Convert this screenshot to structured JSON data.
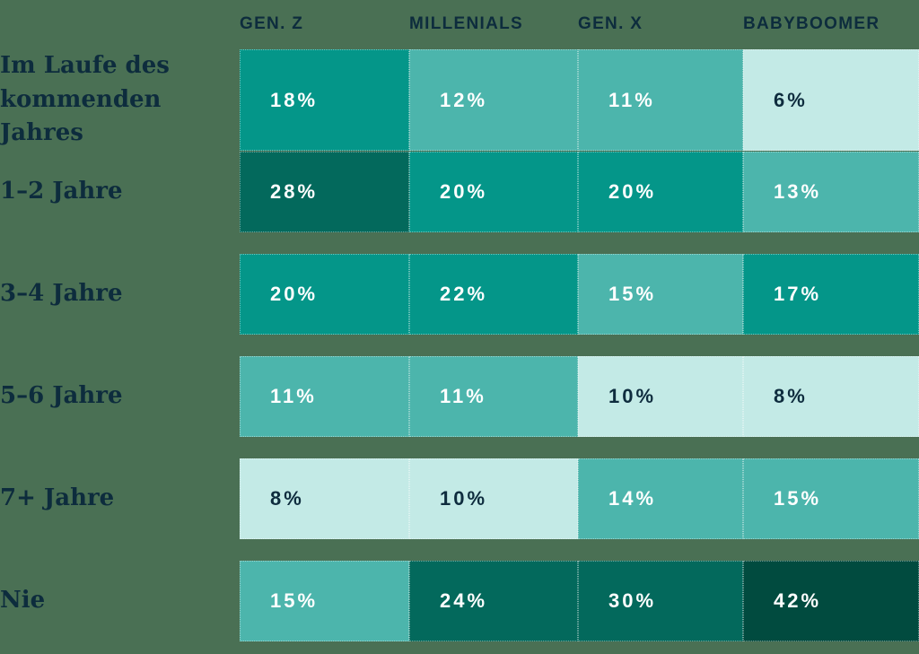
{
  "palette": {
    "background": "#4A7054",
    "darkest": "#014B3F",
    "dark": "#03695C",
    "main": "#049689",
    "mid": "#4CB5AC",
    "light": "#C3EAE6",
    "label_text": "#0D2C3D",
    "light_cell_text": "#0E2C3E",
    "cell_text": "#FFFFFF"
  },
  "table": {
    "columns": [
      "GEN. Z",
      "MILLENIALS",
      "GEN. X",
      "BABYBOOMER"
    ],
    "rows": [
      {
        "label": "Im Laufe des kommenden Jahres",
        "values": [
          "18%",
          "12%",
          "11%",
          "6%"
        ],
        "shades": [
          "main",
          "mid",
          "mid",
          "light"
        ]
      },
      {
        "label": "1–2 Jahre",
        "values": [
          "28%",
          "20%",
          "20%",
          "13%"
        ],
        "shades": [
          "dark",
          "main",
          "main",
          "mid"
        ]
      },
      {
        "label": "3–4 Jahre",
        "values": [
          "20%",
          "22%",
          "15%",
          "17%"
        ],
        "shades": [
          "main",
          "main",
          "mid",
          "main"
        ]
      },
      {
        "label": "5–6 Jahre",
        "values": [
          "11%",
          "11%",
          "10%",
          "8%"
        ],
        "shades": [
          "mid",
          "mid",
          "light",
          "light"
        ]
      },
      {
        "label": "7+ Jahre",
        "values": [
          "8%",
          "10%",
          "14%",
          "15%"
        ],
        "shades": [
          "light",
          "light",
          "mid",
          "mid"
        ]
      },
      {
        "label": "Nie",
        "values": [
          "15%",
          "24%",
          "30%",
          "42%"
        ],
        "shades": [
          "mid",
          "dark",
          "dark",
          "darkest"
        ]
      }
    ]
  },
  "chart_data": {
    "type": "heatmap",
    "columns": [
      "GEN. Z",
      "MILLENIALS",
      "GEN. X",
      "BABYBOOMER"
    ],
    "rows": [
      "Im Laufe des kommenden Jahres",
      "1–2 Jahre",
      "3–4 Jahre",
      "5–6 Jahre",
      "7+ Jahre",
      "Nie"
    ],
    "values": [
      [
        18,
        12,
        11,
        6
      ],
      [
        28,
        20,
        20,
        13
      ],
      [
        20,
        22,
        15,
        17
      ],
      [
        11,
        11,
        10,
        8
      ],
      [
        8,
        10,
        14,
        15
      ],
      [
        15,
        24,
        30,
        42
      ]
    ],
    "unit": "%",
    "title": "",
    "legend_position": "none",
    "color_scale": "teal intensity increases with value, lightest mint for smallest values"
  }
}
